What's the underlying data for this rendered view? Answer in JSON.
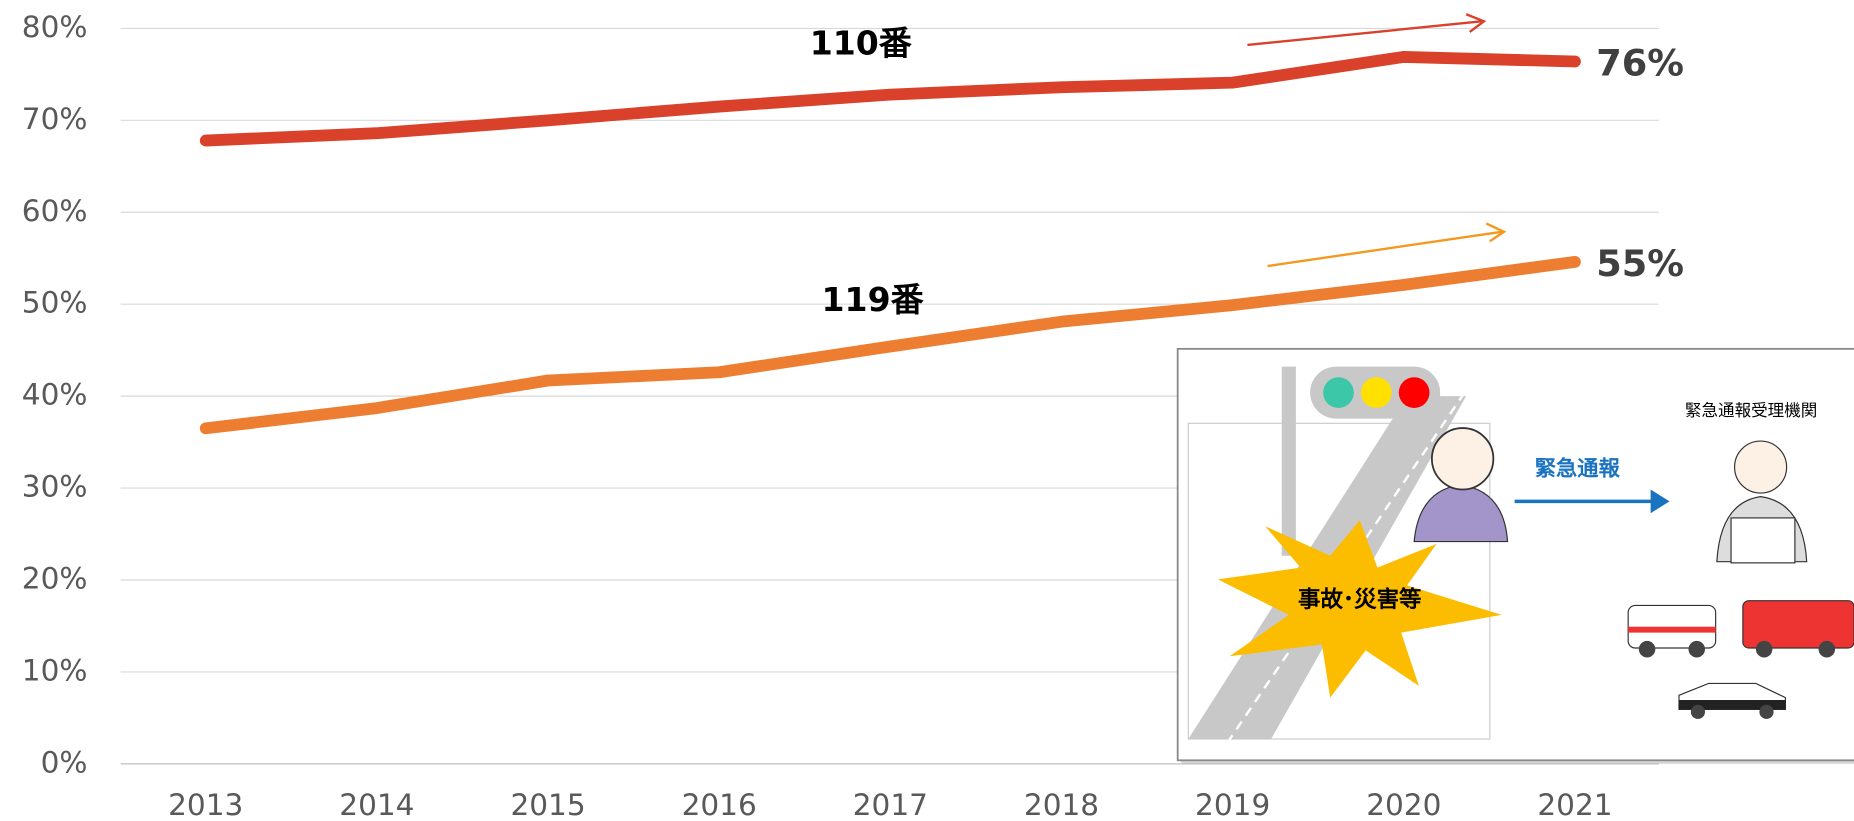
{
  "chart_data": {
    "type": "line",
    "categories": [
      "2013",
      "2014",
      "2015",
      "2016",
      "2017",
      "2018",
      "2019",
      "2020",
      "2021"
    ],
    "series": [
      {
        "name": "110番",
        "color": "#d9412a",
        "values": [
          67.8,
          68.6,
          70.0,
          71.5,
          72.8,
          73.6,
          74.1,
          76.9,
          76.4
        ],
        "end_label": "76%"
      },
      {
        "name": "119番",
        "color": "#ed7d31",
        "values": [
          36.5,
          38.7,
          41.7,
          42.6,
          45.4,
          48.1,
          49.9,
          52.1,
          54.6
        ],
        "end_label": "55%"
      }
    ],
    "ylim": [
      0,
      80
    ],
    "yticks": [
      {
        "value": 0,
        "label": "0%"
      },
      {
        "value": 10,
        "label": "10%"
      },
      {
        "value": 20,
        "label": "20%"
      },
      {
        "value": 30,
        "label": "30%"
      },
      {
        "value": 40,
        "label": "40%"
      },
      {
        "value": 50,
        "label": "50%"
      },
      {
        "value": 60,
        "label": "60%"
      },
      {
        "value": 70,
        "label": "70%"
      },
      {
        "value": 80,
        "label": "80%"
      }
    ],
    "grid": true
  },
  "illustration": {
    "agency": "緊急通報受理機関",
    "call": "緊急通報",
    "incident": "事故･災害等"
  }
}
